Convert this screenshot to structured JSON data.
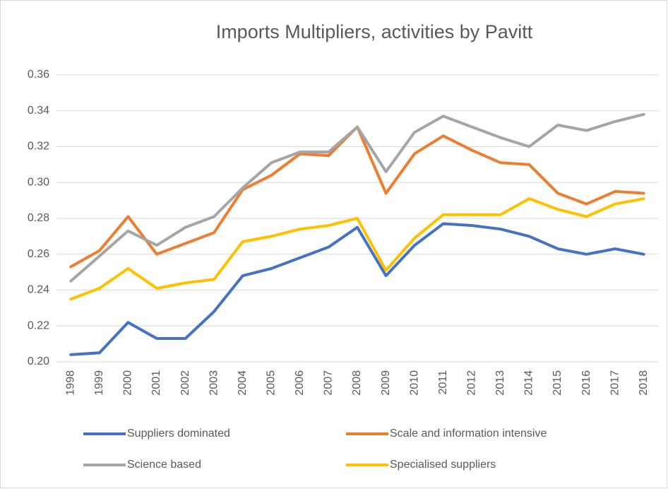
{
  "chart_data": {
    "type": "line",
    "title": "Imports Multipliers, activities by Pavitt",
    "categories": [
      "1998",
      "1999",
      "2000",
      "2001",
      "2002",
      "2003",
      "2004",
      "2005",
      "2006",
      "2007",
      "2008",
      "2009",
      "2010",
      "2011",
      "2012",
      "2013",
      "2014",
      "2015",
      "2016",
      "2017",
      "2018"
    ],
    "series": [
      {
        "name": "Suppliers dominated",
        "color": "#4472c4",
        "values": [
          0.204,
          0.205,
          0.222,
          0.213,
          0.213,
          0.228,
          0.248,
          0.252,
          0.258,
          0.264,
          0.275,
          0.248,
          0.265,
          0.277,
          0.276,
          0.274,
          0.27,
          0.263,
          0.26,
          0.263,
          0.26
        ]
      },
      {
        "name": "Scale and information intensive",
        "color": "#ed7d31",
        "values": [
          0.253,
          0.262,
          0.281,
          0.26,
          0.266,
          0.272,
          0.296,
          0.304,
          0.316,
          0.315,
          0.331,
          0.294,
          0.316,
          0.326,
          0.318,
          0.311,
          0.31,
          0.294,
          0.288,
          0.295,
          0.294
        ]
      },
      {
        "name": "Science based",
        "color": "#a5a5a5",
        "values": [
          0.245,
          0.259,
          0.273,
          0.265,
          0.275,
          0.281,
          0.297,
          0.311,
          0.317,
          0.317,
          0.331,
          0.306,
          0.328,
          0.337,
          0.331,
          0.325,
          0.32,
          0.332,
          0.329,
          0.334,
          0.338
        ]
      },
      {
        "name": "Specialised suppliers",
        "color": "#ffc000",
        "values": [
          0.235,
          0.241,
          0.252,
          0.241,
          0.244,
          0.246,
          0.267,
          0.27,
          0.274,
          0.276,
          0.28,
          0.251,
          0.269,
          0.282,
          0.282,
          0.282,
          0.291,
          0.285,
          0.281,
          0.288,
          0.291
        ]
      }
    ],
    "ylim": [
      0.2,
      0.36
    ],
    "yticks": [
      {
        "value": 0.2,
        "label": "0.20"
      },
      0.22,
      0.24,
      0.26,
      0.28,
      {
        "value": 0.3,
        "label": "0.30"
      },
      0.32,
      0.34,
      0.36
    ],
    "grid": true,
    "legend": "bottom"
  }
}
